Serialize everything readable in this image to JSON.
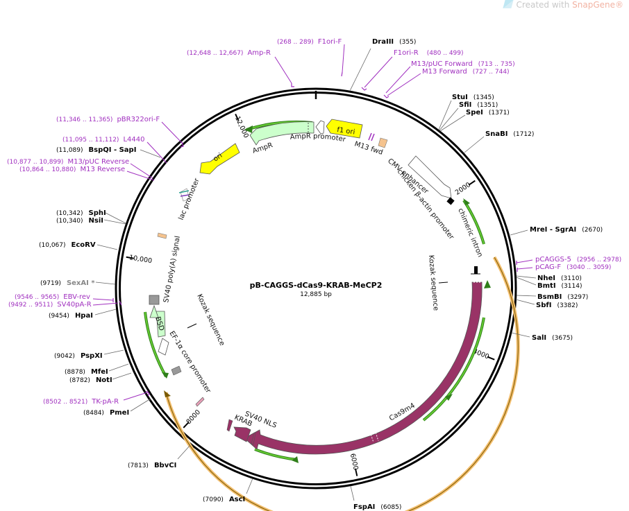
{
  "watermark": {
    "prefix": "Created with ",
    "brand": "SnapGene",
    "reg": "®"
  },
  "plasmid": {
    "name": "pB-CAGGS-dCas9-KRAB-MeCP2",
    "size_label": "12,885 bp",
    "length": 12885
  },
  "ticks": [
    {
      "pos": 2000,
      "label": "2000"
    },
    {
      "pos": 4000,
      "label": "4000"
    },
    {
      "pos": 6000,
      "label": "6000"
    },
    {
      "pos": 8000,
      "label": "8000"
    },
    {
      "pos": 10000,
      "label": "10,000"
    },
    {
      "pos": 12000,
      "label": "12,000"
    }
  ],
  "sites": [
    {
      "name": "DraIII",
      "pos_label": "(355)",
      "pos": 355
    },
    {
      "name": "StuI",
      "pos_label": "(1345)",
      "pos": 1345
    },
    {
      "name": "SfiI",
      "pos_label": "(1351)",
      "pos": 1351
    },
    {
      "name": "SpeI",
      "pos_label": "(1371)",
      "pos": 1371
    },
    {
      "name": "SnaBI",
      "pos_label": "(1712)",
      "pos": 1712
    },
    {
      "name": "MreI",
      "suffix": " - SgrAI",
      "pos_label": "(2670)",
      "pos": 2670
    },
    {
      "name": "NheI",
      "pos_label": "(3110)",
      "pos": 3110
    },
    {
      "name": "BmtI",
      "pos_label": "(3114)",
      "pos": 3114
    },
    {
      "name": "BsmBI",
      "pos_label": "(3297)",
      "pos": 3297
    },
    {
      "name": "SbfI",
      "pos_label": "(3382)",
      "pos": 3382
    },
    {
      "name": "SalI",
      "pos_label": "(3675)",
      "pos": 3675
    },
    {
      "name": "FspAI",
      "pos_label": "(6085)",
      "pos": 6085
    },
    {
      "name": "AscI",
      "pos_label": "(7090)",
      "pos": 7090
    },
    {
      "name": "BbvCI",
      "pos_label": "(7813)",
      "pos": 7813
    },
    {
      "name": "PmeI",
      "pos_label": "(8484)",
      "pos": 8484
    },
    {
      "name": "NotI",
      "pos_label": "(8782)",
      "pos": 8782
    },
    {
      "name": "MfeI",
      "pos_label": "(8878)",
      "pos": 8878
    },
    {
      "name": "PspXI",
      "pos_label": "(9042)",
      "pos": 9042
    },
    {
      "name": "HpaI",
      "pos_label": "(9454)",
      "pos": 9454
    },
    {
      "name": "SexAI *",
      "pos_label": "(9719)",
      "pos": 9719,
      "gray": true
    },
    {
      "name": "EcoRV",
      "pos_label": "(10,067)",
      "pos": 10067
    },
    {
      "name": "NsiI",
      "pos_label": "(10,340)",
      "pos": 10340
    },
    {
      "name": "SphI",
      "pos_label": "(10,342)",
      "pos": 10342
    },
    {
      "name": "BspQI",
      "suffix": " - SapI",
      "pos_label": "(11,089)",
      "pos": 11089
    }
  ],
  "primers": [
    {
      "name": "F1ori-F",
      "range": "(268 .. 289)",
      "pos": 279
    },
    {
      "name": "Amp-R",
      "range": "(12,648 .. 12,667)",
      "pos": 12657
    },
    {
      "name": "F1ori-R",
      "range": "(480 .. 499)",
      "pos": 490
    },
    {
      "name": "M13/pUC Forward",
      "range": "(713 .. 735)",
      "pos": 724
    },
    {
      "name": "M13 Forward",
      "range": "(727 .. 744)",
      "pos": 735
    },
    {
      "name": "pCAGGS-5",
      "range": "(2956 .. 2978)",
      "pos": 2967
    },
    {
      "name": "pCAG-F",
      "range": "(3040 .. 3059)",
      "pos": 3050
    },
    {
      "name": "pBR322ori-F",
      "range": "(11,346 .. 11,365)",
      "pos": 11355
    },
    {
      "name": "L4440",
      "range": "(11,095 .. 11,112)",
      "pos": 11103
    },
    {
      "name": "M13/pUC Reverse",
      "range": "(10,877 .. 10,899)",
      "pos": 10888
    },
    {
      "name": "M13 Reverse",
      "range": "(10,864 .. 10,880)",
      "pos": 10872
    },
    {
      "name": "EBV-rev",
      "range": "(9546 .. 9565)",
      "pos": 9555
    },
    {
      "name": "SV40pA-R",
      "range": "(9492 .. 9511)",
      "pos": 9501
    },
    {
      "name": "TK-pA-R",
      "range": "(8502 .. 8521)",
      "pos": 8511
    }
  ],
  "features": [
    {
      "name": "f1 ori",
      "color": "#ffff00",
      "start": 12700,
      "end": 12885
    },
    {
      "name": "AmpR promoter",
      "color": "#ffffff",
      "start": 12300,
      "end": 12400
    },
    {
      "name": "AmpR",
      "color": "#ccffcc",
      "start": 11500,
      "end": 12300
    },
    {
      "name": "ori",
      "color": "#ffff00",
      "start": 10950,
      "end": 11380
    },
    {
      "name": "lac promoter",
      "color": "#ffffff"
    },
    {
      "name": "M13 fwd",
      "color": "#ffffff"
    },
    {
      "name": "CMV enhancer",
      "color": "#ffffff"
    },
    {
      "name": "chicken β-actin promoter",
      "color": "#ffffff"
    },
    {
      "name": "chimeric intron",
      "color": "#ffffff"
    },
    {
      "name": "Kozak sequence",
      "color": "#ffffff"
    },
    {
      "name": "Cas9m4",
      "color": "#993366"
    },
    {
      "name": "SV40 NLS",
      "color": "#993366"
    },
    {
      "name": "KRAB",
      "color": "#993366"
    },
    {
      "name": "EF-1α core promoter",
      "color": "#ffffff"
    },
    {
      "name": "BSD",
      "color": "#ccffcc"
    },
    {
      "name": "SV40 poly(A) signal",
      "color": "#ffffff"
    }
  ],
  "colors": {
    "primer": "#a02fbf",
    "orf_green": "#66cc33",
    "orf_orange": "#f3be6e",
    "cas9": "#993366"
  }
}
